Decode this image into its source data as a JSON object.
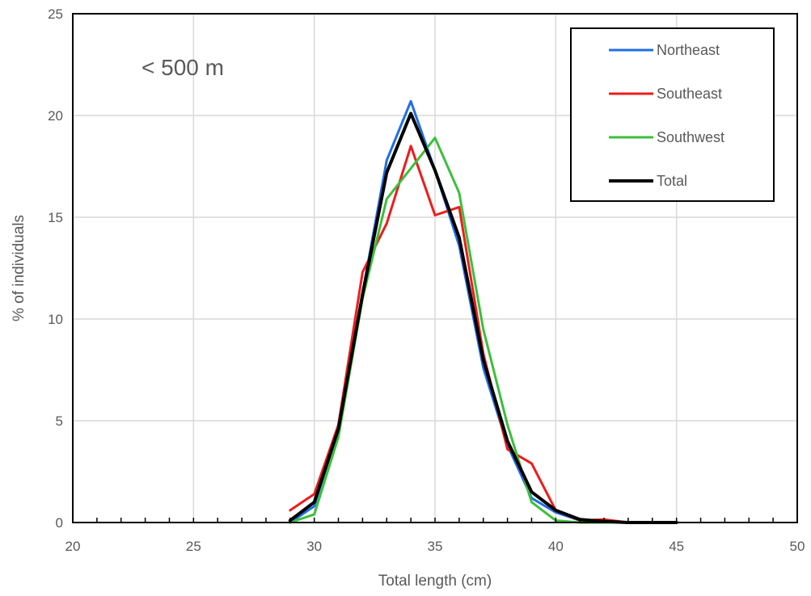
{
  "chart_data": {
    "type": "line",
    "annotation": "< 500 m",
    "xlabel": "Total length (cm)",
    "ylabel": "% of individuals",
    "xlim": [
      20,
      50
    ],
    "ylim": [
      0,
      25
    ],
    "x_ticks": [
      20,
      25,
      30,
      35,
      40,
      45,
      50
    ],
    "y_ticks": [
      0,
      5,
      10,
      15,
      20,
      25
    ],
    "grid": true,
    "legend_position": "top-right",
    "series": [
      {
        "name": "Northeast",
        "color": "#1f6fe5",
        "width": 3,
        "x": [
          29,
          30,
          31,
          32,
          33,
          34,
          35,
          36,
          37,
          38,
          39,
          40,
          41,
          42,
          43,
          44,
          45
        ],
        "y": [
          0.0,
          0.8,
          4.6,
          11.3,
          17.8,
          20.7,
          17.3,
          13.6,
          7.6,
          3.8,
          1.2,
          0.5,
          0.1,
          0.05,
          0.0,
          0.0,
          0.0
        ]
      },
      {
        "name": "Southeast",
        "color": "#ee1c1c",
        "width": 3,
        "x": [
          29,
          30,
          31,
          32,
          33,
          34,
          35,
          36,
          37,
          38,
          39,
          40,
          41,
          42,
          43,
          44,
          45
        ],
        "y": [
          0.6,
          1.4,
          4.8,
          12.3,
          14.7,
          18.5,
          15.1,
          15.5,
          8.3,
          3.6,
          2.9,
          0.6,
          0.1,
          0.15,
          0.0,
          0.0,
          0.0
        ]
      },
      {
        "name": "Southwest",
        "color": "#3cbf3c",
        "width": 3,
        "x": [
          29,
          30,
          31,
          32,
          33,
          34,
          35,
          36,
          37,
          38,
          39,
          40,
          41,
          42,
          43,
          44,
          45
        ],
        "y": [
          0.0,
          0.4,
          4.2,
          11.0,
          15.9,
          17.4,
          18.9,
          16.2,
          9.5,
          4.8,
          1.0,
          0.1,
          0.0,
          0.0,
          0.0,
          0.0,
          0.0
        ]
      },
      {
        "name": "Total",
        "color": "#000000",
        "width": 4,
        "x": [
          29,
          30,
          31,
          32,
          33,
          34,
          35,
          36,
          37,
          38,
          39,
          40,
          41,
          42,
          43,
          44,
          45
        ],
        "y": [
          0.1,
          1.0,
          4.6,
          11.2,
          17.2,
          20.1,
          17.3,
          14.0,
          8.0,
          4.0,
          1.5,
          0.6,
          0.15,
          0.05,
          0.0,
          0.0,
          0.0
        ]
      }
    ]
  }
}
